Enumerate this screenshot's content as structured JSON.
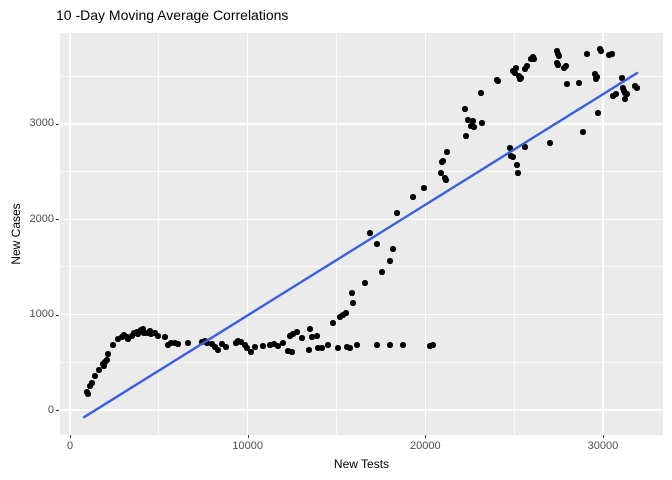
{
  "chart_data": {
    "type": "scatter",
    "title": "10 -Day Moving Average Correlations",
    "xlabel": "New Tests",
    "ylabel": "New Cases",
    "xlim": [
      -563,
      33380
    ],
    "ylim": [
      -262,
      3954
    ],
    "x_ticks": [
      0,
      10000,
      20000,
      30000
    ],
    "y_ticks": [
      0,
      1000,
      2000,
      3000
    ],
    "x_minor_ticks": [
      5000,
      15000,
      25000
    ],
    "y_minor_ticks": [
      500,
      1500,
      2500,
      3500
    ],
    "grid": true,
    "legend_position": "none",
    "colors": {
      "panel_bg": "#EBEBEB",
      "grid": "#FFFFFF",
      "point": "#000000",
      "trend": "#3C5FE1",
      "tick_label": "#4D4D4D",
      "axis_title": "#000000",
      "title": "#000000"
    },
    "trend_line": {
      "x1": 790,
      "y1": -75,
      "x2": 31925,
      "y2": 3535
    },
    "points": [
      [
        960,
        189
      ],
      [
        1010,
        168
      ],
      [
        1130,
        252
      ],
      [
        1240,
        283
      ],
      [
        1410,
        357
      ],
      [
        1630,
        420
      ],
      [
        1860,
        483
      ],
      [
        1910,
        462
      ],
      [
        1970,
        503
      ],
      [
        2080,
        524
      ],
      [
        2140,
        587
      ],
      [
        2420,
        682
      ],
      [
        2700,
        745
      ],
      [
        2930,
        766
      ],
      [
        3040,
        787
      ],
      [
        3210,
        766
      ],
      [
        3260,
        745
      ],
      [
        3490,
        776
      ],
      [
        3600,
        808
      ],
      [
        3770,
        818
      ],
      [
        3830,
        797
      ],
      [
        4000,
        839
      ],
      [
        4050,
        818
      ],
      [
        4110,
        850
      ],
      [
        4170,
        808
      ],
      [
        4330,
        808
      ],
      [
        4500,
        829
      ],
      [
        4560,
        797
      ],
      [
        4790,
        808
      ],
      [
        4950,
        776
      ],
      [
        5350,
        766
      ],
      [
        5520,
        682
      ],
      [
        5690,
        703
      ],
      [
        5910,
        703
      ],
      [
        6080,
        692
      ],
      [
        6640,
        703
      ],
      [
        7430,
        713
      ],
      [
        7600,
        724
      ],
      [
        7710,
        703
      ],
      [
        7990,
        692
      ],
      [
        8160,
        661
      ],
      [
        8330,
        629
      ],
      [
        8560,
        692
      ],
      [
        8780,
        661
      ],
      [
        9340,
        703
      ],
      [
        9460,
        724
      ],
      [
        9630,
        713
      ],
      [
        9850,
        682
      ],
      [
        9960,
        650
      ],
      [
        10190,
        608
      ],
      [
        10410,
        661
      ],
      [
        10860,
        671
      ],
      [
        11260,
        682
      ],
      [
        11480,
        692
      ],
      [
        11710,
        671
      ],
      [
        11990,
        703
      ],
      [
        12270,
        619
      ],
      [
        12380,
        776
      ],
      [
        12500,
        608
      ],
      [
        12550,
        797
      ],
      [
        12780,
        818
      ],
      [
        13060,
        755
      ],
      [
        13450,
        629
      ],
      [
        13510,
        850
      ],
      [
        13620,
        766
      ],
      [
        13900,
        776
      ],
      [
        13960,
        650
      ],
      [
        14190,
        650
      ],
      [
        14520,
        682
      ],
      [
        15090,
        650
      ],
      [
        15590,
        661
      ],
      [
        15760,
        650
      ],
      [
        16160,
        682
      ],
      [
        17280,
        682
      ],
      [
        18010,
        682
      ],
      [
        18750,
        682
      ],
      [
        20260,
        671
      ],
      [
        20430,
        682
      ],
      [
        14800,
        912
      ],
      [
        15200,
        975
      ],
      [
        15370,
        996
      ],
      [
        15540,
        1017
      ],
      [
        15870,
        1227
      ],
      [
        15930,
        1122
      ],
      [
        16610,
        1332
      ],
      [
        16890,
        1857
      ],
      [
        17280,
        1741
      ],
      [
        17560,
        1447
      ],
      [
        18010,
        1563
      ],
      [
        18180,
        1689
      ],
      [
        18410,
        2066
      ],
      [
        19310,
        2234
      ],
      [
        19930,
        2329
      ],
      [
        20880,
        2486
      ],
      [
        20940,
        2601
      ],
      [
        21000,
        2612
      ],
      [
        21110,
        2433
      ],
      [
        21170,
        2412
      ],
      [
        21220,
        2706
      ],
      [
        22240,
        3157
      ],
      [
        22290,
        2874
      ],
      [
        22400,
        3042
      ],
      [
        22570,
        2979
      ],
      [
        22690,
        3031
      ],
      [
        22740,
        2968
      ],
      [
        23140,
        3325
      ],
      [
        23190,
        3010
      ],
      [
        24040,
        3461
      ],
      [
        24090,
        3451
      ],
      [
        24770,
        2748
      ],
      [
        24820,
        2664
      ],
      [
        24940,
        2654
      ],
      [
        25160,
        2570
      ],
      [
        25220,
        2486
      ],
      [
        25610,
        2759
      ],
      [
        24940,
        3556
      ],
      [
        25050,
        3535
      ],
      [
        25110,
        3587
      ],
      [
        25270,
        3503
      ],
      [
        25330,
        3472
      ],
      [
        25390,
        3482
      ],
      [
        25610,
        3577
      ],
      [
        25730,
        3608
      ],
      [
        25950,
        3682
      ],
      [
        26060,
        3703
      ],
      [
        26120,
        3682
      ],
      [
        27020,
        2800
      ],
      [
        27410,
        3766
      ],
      [
        27470,
        3734
      ],
      [
        27530,
        3713
      ],
      [
        27410,
        3640
      ],
      [
        27470,
        3619
      ],
      [
        27810,
        3587
      ],
      [
        27920,
        3608
      ],
      [
        27980,
        3419
      ],
      [
        28650,
        3430
      ],
      [
        28880,
        2916
      ],
      [
        29100,
        3734
      ],
      [
        29550,
        3524
      ],
      [
        29610,
        3472
      ],
      [
        29670,
        3493
      ],
      [
        29720,
        3115
      ],
      [
        29830,
        3787
      ],
      [
        29890,
        3766
      ],
      [
        30340,
        3724
      ],
      [
        30510,
        3734
      ],
      [
        30570,
        3293
      ],
      [
        30730,
        3314
      ],
      [
        31070,
        3482
      ],
      [
        31130,
        3377
      ],
      [
        31180,
        3346
      ],
      [
        31240,
        3325
      ],
      [
        31350,
        3314
      ],
      [
        31240,
        3262
      ],
      [
        31800,
        3398
      ],
      [
        31920,
        3377
      ]
    ]
  }
}
